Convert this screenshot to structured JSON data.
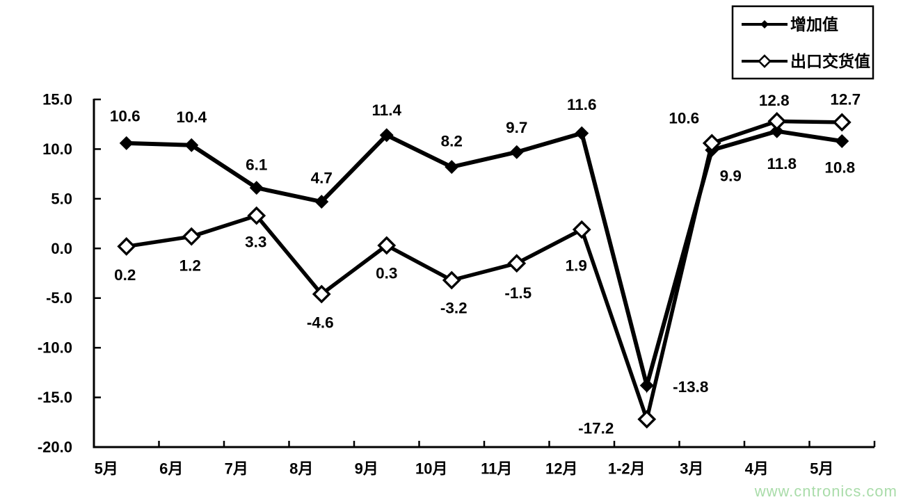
{
  "watermark": {
    "text": "www.cntronics.com",
    "color": "#a9dca9"
  },
  "chart_data": {
    "type": "line",
    "title": "",
    "xlabel": "",
    "ylabel": "",
    "categories": [
      "5月",
      "6月",
      "7月",
      "8月",
      "9月",
      "10月",
      "11月",
      "12月",
      "1-2月",
      "3月",
      "4月",
      "5月"
    ],
    "series": [
      {
        "name": "增加值",
        "marker": "filled-diamond",
        "color": "#000000",
        "values": [
          10.6,
          10.4,
          6.1,
          4.7,
          11.4,
          8.2,
          9.7,
          11.6,
          -13.8,
          9.9,
          11.8,
          10.8
        ],
        "labels": [
          "10.6",
          "10.4",
          "6.1",
          "4.7",
          "11.4",
          "8.2",
          "9.7",
          "11.6",
          "-13.8",
          "9.9",
          "11.8",
          "10.8"
        ]
      },
      {
        "name": "出口交货值",
        "marker": "open-diamond",
        "color": "#000000",
        "values": [
          0.2,
          1.2,
          3.3,
          -4.6,
          0.3,
          -3.2,
          -1.5,
          1.9,
          -17.2,
          10.6,
          12.8,
          12.7
        ],
        "labels": [
          "0.2",
          "1.2",
          "3.3",
          "-4.6",
          "0.3",
          "-3.2",
          "-1.5",
          "1.9",
          "-17.2",
          "10.6",
          "12.8",
          "12.7"
        ]
      }
    ],
    "ylim": [
      -20,
      15
    ],
    "ytick_step": 5,
    "ytick_labels": [
      "15.0",
      "10.0",
      "5.0",
      "0.0",
      "-5.0",
      "-10.0",
      "-15.0",
      "-20.0"
    ],
    "grid": "off",
    "legend_position": "top-right",
    "axis_color": "#000000",
    "background": "#ffffff"
  }
}
